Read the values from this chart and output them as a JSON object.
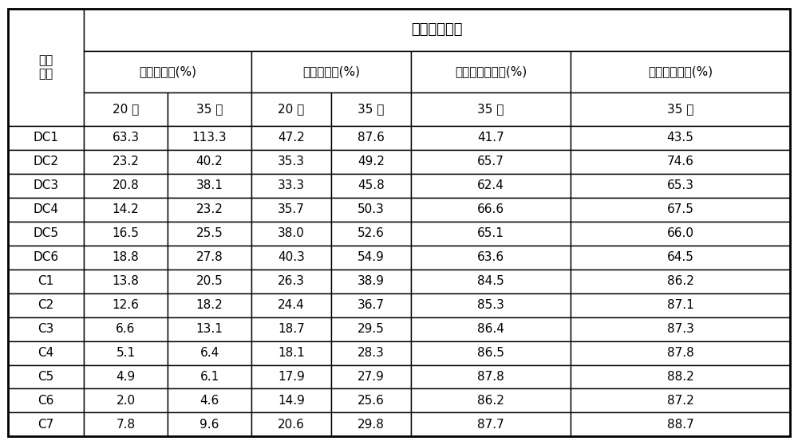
{
  "title": "高温存储性能",
  "battery_label": "电池\n编号",
  "header2": [
    "厚度增加率(%)",
    "内阻增加率(%)",
    "剩余容量保持率(%)",
    "恢复容量比率(%)"
  ],
  "header3": [
    "20 天",
    "35 天",
    "20 天",
    "35 天",
    "35 天",
    "35 天"
  ],
  "rows": [
    [
      "DC1",
      "63.3",
      "113.3",
      "47.2",
      "87.6",
      "41.7",
      "43.5"
    ],
    [
      "DC2",
      "23.2",
      "40.2",
      "35.3",
      "49.2",
      "65.7",
      "74.6"
    ],
    [
      "DC3",
      "20.8",
      "38.1",
      "33.3",
      "45.8",
      "62.4",
      "65.3"
    ],
    [
      "DC4",
      "14.2",
      "23.2",
      "35.7",
      "50.3",
      "66.6",
      "67.5"
    ],
    [
      "DC5",
      "16.5",
      "25.5",
      "38.0",
      "52.6",
      "65.1",
      "66.0"
    ],
    [
      "DC6",
      "18.8",
      "27.8",
      "40.3",
      "54.9",
      "63.6",
      "64.5"
    ],
    [
      "C1",
      "13.8",
      "20.5",
      "26.3",
      "38.9",
      "84.5",
      "86.2"
    ],
    [
      "C2",
      "12.6",
      "18.2",
      "24.4",
      "36.7",
      "85.3",
      "87.1"
    ],
    [
      "C3",
      "6.6",
      "13.1",
      "18.7",
      "29.5",
      "86.4",
      "87.3"
    ],
    [
      "C4",
      "5.1",
      "6.4",
      "18.1",
      "28.3",
      "86.5",
      "87.8"
    ],
    [
      "C5",
      "4.9",
      "6.1",
      "17.9",
      "27.9",
      "87.8",
      "88.2"
    ],
    [
      "C6",
      "2.0",
      "4.6",
      "14.9",
      "25.6",
      "86.2",
      "87.2"
    ],
    [
      "C7",
      "7.8",
      "9.6",
      "20.6",
      "29.8",
      "87.7",
      "88.7"
    ]
  ],
  "bg_color": "#ffffff",
  "border_color": "#000000",
  "text_color": "#000000",
  "title_fontsize": 13,
  "header_fontsize": 11,
  "cell_fontsize": 11
}
